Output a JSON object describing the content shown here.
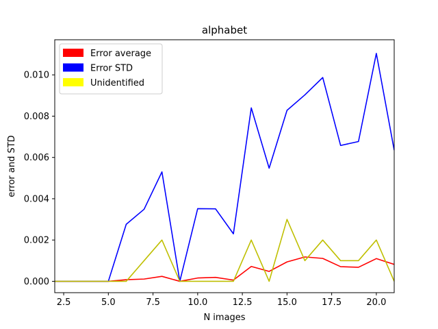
{
  "chart_data": {
    "type": "line",
    "title": "alphabet",
    "xlabel": "N images",
    "ylabel": "error and STD",
    "xlim": [
      2,
      21
    ],
    "ylim": [
      -0.00055,
      0.0117
    ],
    "x": [
      2,
      3,
      4,
      5,
      6,
      7,
      8,
      9,
      10,
      11,
      12,
      13,
      14,
      15,
      16,
      17,
      18,
      19,
      20,
      21
    ],
    "x_ticks": [
      2.5,
      5.0,
      7.5,
      10.0,
      12.5,
      15.0,
      17.5,
      20.0
    ],
    "x_tick_labels": [
      "2.5",
      "5.0",
      "7.5",
      "10.0",
      "12.5",
      "15.0",
      "17.5",
      "20.0"
    ],
    "y_ticks": [
      0.0,
      0.002,
      0.004,
      0.006,
      0.008,
      0.01
    ],
    "y_tick_labels": [
      "0.000",
      "0.002",
      "0.004",
      "0.006",
      "0.008",
      "0.010"
    ],
    "grid": false,
    "legend_position": "top-left",
    "series": [
      {
        "name": "Error average",
        "color": "#ff0000",
        "values": [
          0.0,
          0.0,
          0.0,
          0.0,
          8e-05,
          0.00011,
          0.00024,
          0.0,
          0.00016,
          0.00019,
          6e-05,
          0.00072,
          0.00048,
          0.00094,
          0.00118,
          0.00111,
          0.00071,
          0.00068,
          0.0011,
          0.00082
        ]
      },
      {
        "name": "Error STD",
        "color": "#0000ff",
        "values": [
          0.0,
          0.0,
          0.0,
          0.0,
          0.00276,
          0.00349,
          0.0053,
          0.0,
          0.00352,
          0.00351,
          0.0023,
          0.0084,
          0.00548,
          0.00828,
          0.00903,
          0.00987,
          0.00658,
          0.00677,
          0.01104,
          0.00635
        ]
      },
      {
        "name": "Unidentified",
        "color": "#bfbf00",
        "values": [
          0.0,
          0.0,
          0.0,
          0.0,
          0.0,
          0.001,
          0.002,
          0.0,
          0.0,
          0.0,
          0.0,
          0.002,
          0.0,
          0.003,
          0.001,
          0.002,
          0.001,
          0.001,
          0.002,
          0.0
        ]
      }
    ],
    "legend_colors": [
      "#ff0000",
      "#0000ff",
      "#ffff00"
    ]
  }
}
